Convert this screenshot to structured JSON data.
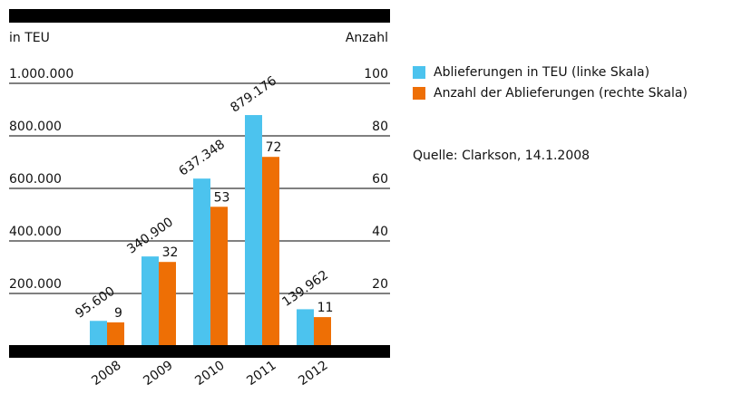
{
  "chart_data": {
    "type": "bar",
    "y_label": "in TEU",
    "y2_label": "Anzahl",
    "source": "Quelle: Clarkson, 14.1.2008",
    "categories": [
      "2008",
      "2009",
      "2010",
      "2011",
      "2012"
    ],
    "series": [
      {
        "name": "Ablieferungen in TEU (linke Skala)",
        "color": "#4cc3ee",
        "values": [
          95600,
          340900,
          637348,
          879176,
          139962
        ],
        "value_labels": [
          "95.600",
          "340.900",
          "637.348",
          "879.176",
          "139.962"
        ]
      },
      {
        "name": "Anzahl der Ablieferungen (rechte Skala)",
        "color": "#ee6f05",
        "axis": "y2",
        "values": [
          9,
          32,
          53,
          72,
          11
        ]
      }
    ],
    "ylim": [
      0,
      1000000
    ],
    "yticks": [
      {
        "value": 200000,
        "label": "200.000"
      },
      {
        "value": 400000,
        "label": "400.000"
      },
      {
        "value": 600000,
        "label": "600.000"
      },
      {
        "value": 800000,
        "label": "800.000"
      },
      {
        "value": 1000000,
        "label": "1.000.000"
      }
    ],
    "y2lim": [
      0,
      100
    ],
    "y2ticks": [
      20,
      40,
      60,
      80,
      100
    ],
    "grid": true
  }
}
